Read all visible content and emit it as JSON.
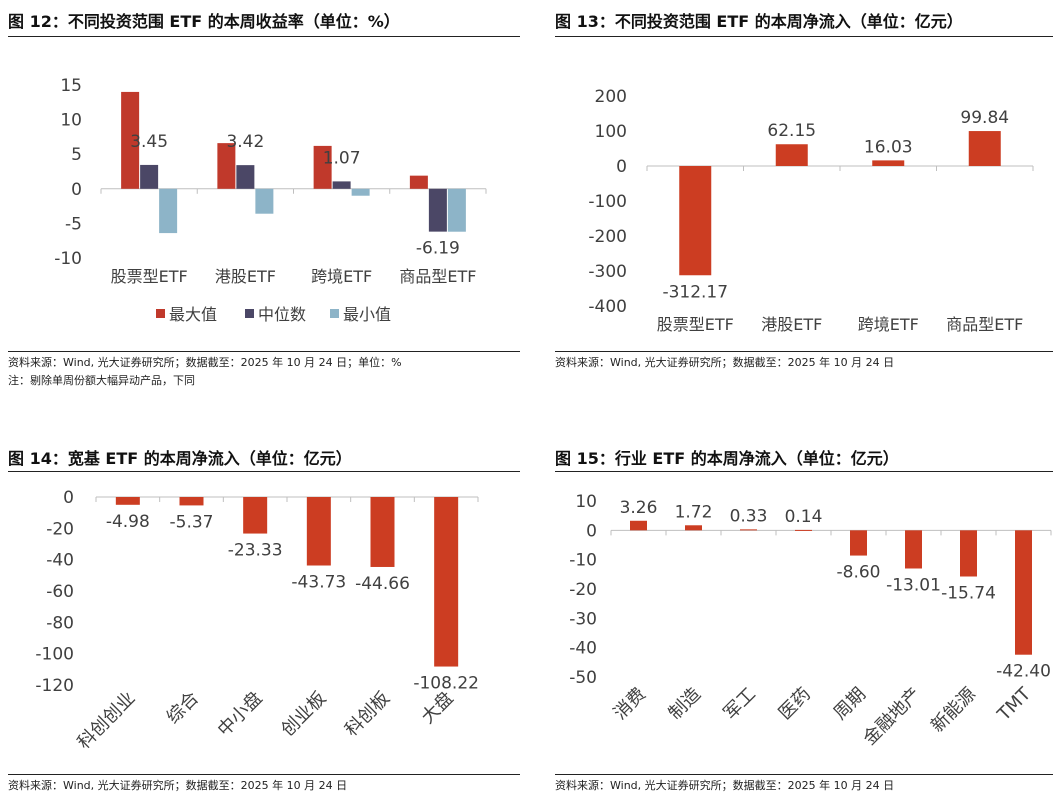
{
  "colors": {
    "max": "#C0392B",
    "median": "#4B4766",
    "min": "#8DB4C8",
    "bar": "#CC3D22",
    "axis": "#BFBFBF",
    "text": "#404040"
  },
  "charts": [
    {
      "title": "图 12：不同投资范围 ETF 的本周收益率（单位：%）",
      "notes": [
        "资料来源：Wind, 光大证券研究所；数据截至：2025 年 10 月 24 日；单位：%",
        "注：剔除单周份额大幅异动产品，下同"
      ],
      "chart_data": {
        "type": "bar",
        "categories": [
          "股票型ETF",
          "港股ETF",
          "跨境ETF",
          "商品型ETF"
        ],
        "series": [
          {
            "name": "最大值",
            "values": [
              14.0,
              6.6,
              6.2,
              1.9
            ]
          },
          {
            "name": "中位数",
            "values": [
              3.45,
              3.42,
              1.07,
              -6.19
            ]
          },
          {
            "name": "最小值",
            "values": [
              -6.4,
              -3.6,
              -1.0,
              -6.2
            ]
          }
        ],
        "data_labels": [
          "3.45",
          "3.42",
          "1.07",
          "-6.19"
        ],
        "yticks": [
          "15",
          "10",
          "5",
          "0",
          "-5",
          "-10"
        ],
        "ylim": [
          -10,
          15
        ],
        "legend": "bottom"
      }
    },
    {
      "title": "图 13：不同投资范围 ETF 的本周净流入（单位：亿元）",
      "notes": [
        "资料来源：Wind, 光大证券研究所；数据截至：2025 年 10 月 24 日"
      ],
      "chart_data": {
        "type": "bar",
        "categories": [
          "股票型ETF",
          "港股ETF",
          "跨境ETF",
          "商品型ETF"
        ],
        "values": [
          -312.17,
          62.15,
          16.03,
          99.84
        ],
        "data_labels": [
          "-312.17",
          "62.15",
          "16.03",
          "99.84"
        ],
        "yticks": [
          "200",
          "100",
          "0",
          "-100",
          "-200",
          "-300",
          "-400"
        ],
        "ylim": [
          -400,
          200
        ]
      }
    },
    {
      "title": "图 14：宽基 ETF 的本周净流入（单位：亿元）",
      "notes": [
        "资料来源：Wind, 光大证券研究所；数据截至：2025 年 10 月 24 日"
      ],
      "chart_data": {
        "type": "bar",
        "categories": [
          "科创创业",
          "综合",
          "中小盘",
          "创业板",
          "科创板",
          "大盘"
        ],
        "values": [
          -4.98,
          -5.37,
          -23.33,
          -43.73,
          -44.66,
          -108.22
        ],
        "data_labels": [
          "-4.98",
          "-5.37",
          "-23.33",
          "-43.73",
          "-44.66",
          "-108.22"
        ],
        "yticks": [
          "0",
          "-20",
          "-40",
          "-60",
          "-80",
          "-100",
          "-120"
        ],
        "ylim": [
          -120,
          0
        ]
      }
    },
    {
      "title": "图 15：行业 ETF 的本周净流入（单位：亿元）",
      "notes": [
        "资料来源：Wind, 光大证券研究所；数据截至：2025 年 10 月 24 日"
      ],
      "chart_data": {
        "type": "bar",
        "categories": [
          "消费",
          "制造",
          "军工",
          "医药",
          "周期",
          "金融地产",
          "新能源",
          "TMT"
        ],
        "values": [
          3.26,
          1.72,
          0.33,
          0.14,
          -8.6,
          -13.01,
          -15.74,
          -42.4
        ],
        "data_labels": [
          "3.26",
          "1.72",
          "0.33",
          "0.14",
          "-8.60",
          "-13.01",
          "-15.74",
          "-42.40"
        ],
        "yticks": [
          "10",
          "0",
          "-10",
          "-20",
          "-30",
          "-40",
          "-50"
        ],
        "ylim": [
          -50,
          10
        ]
      }
    }
  ]
}
